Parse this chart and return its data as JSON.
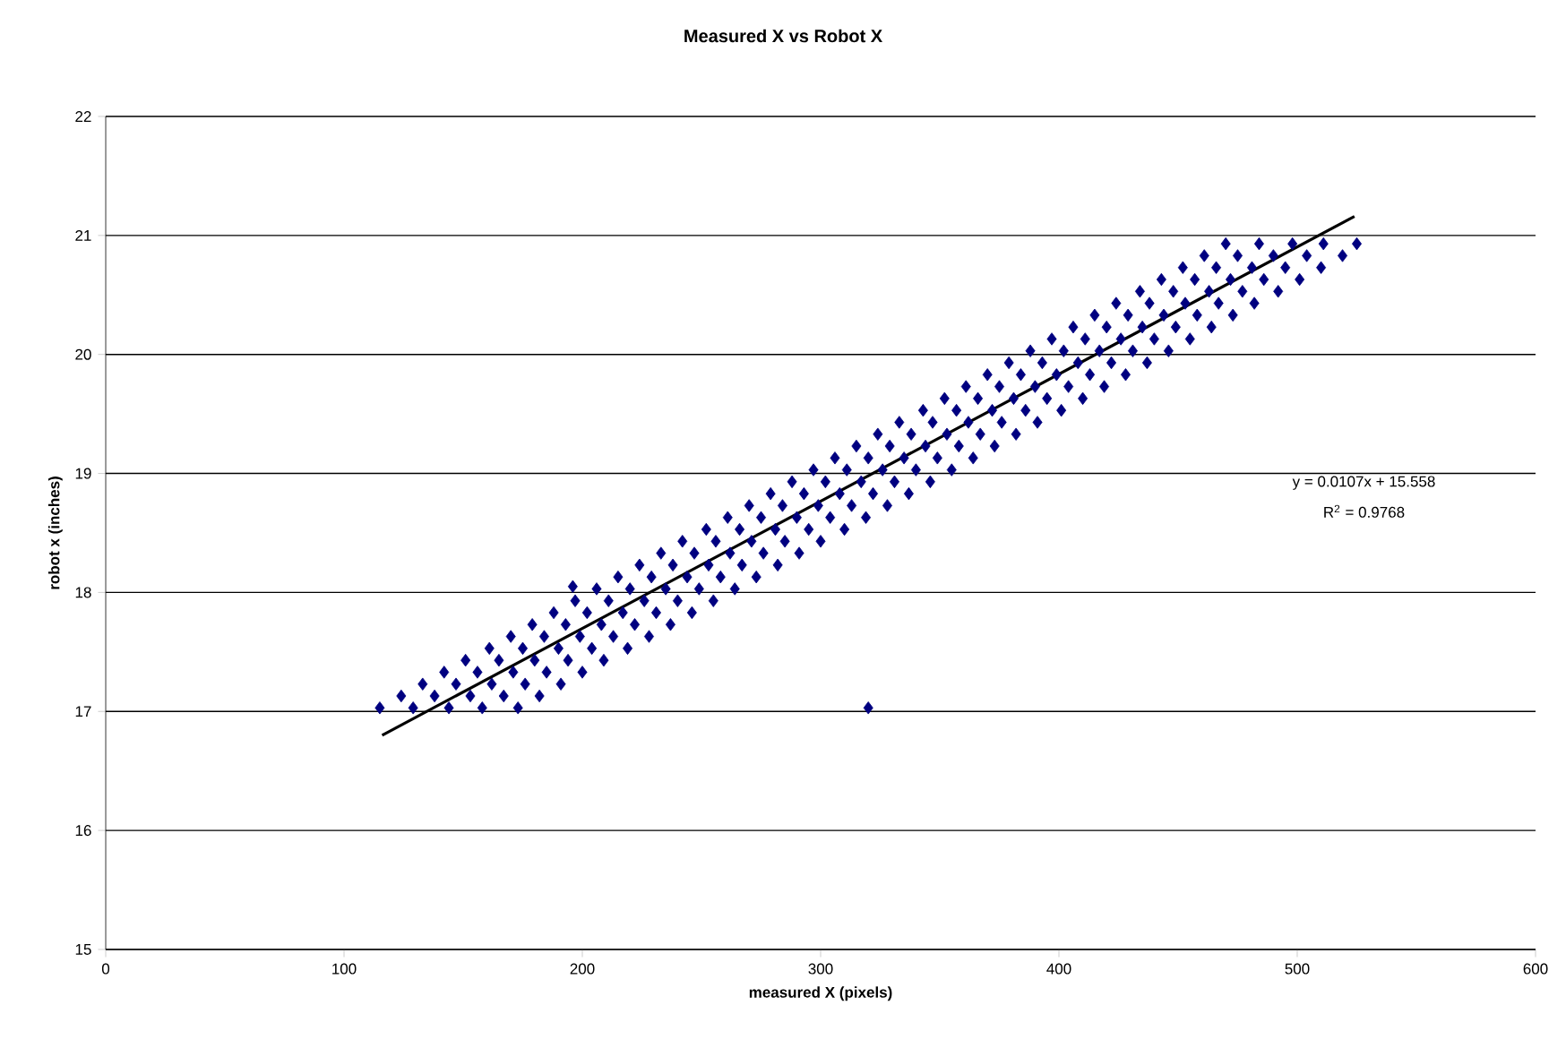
{
  "chart_data": {
    "type": "scatter",
    "title": "Measured X vs Robot X",
    "xlabel": "measured X (pixels)",
    "ylabel": "robot x (inches)",
    "xlim": [
      0,
      600
    ],
    "xticks": [
      0,
      100,
      200,
      300,
      400,
      500,
      600
    ],
    "ylim": [
      15,
      22
    ],
    "yticks": [
      15,
      16,
      17,
      18,
      19,
      20,
      21,
      22
    ],
    "grid": "y",
    "annotations": [
      "y = 0.0107x + 15.558",
      "R$^{2}$ = 0.9768"
    ],
    "series": [
      {
        "color": "#000080",
        "marker": "diamond",
        "x": [
          115,
          129,
          144,
          158,
          173,
          124,
          138,
          153,
          167,
          182,
          133,
          147,
          162,
          176,
          191,
          142,
          156,
          171,
          185,
          200,
          151,
          165,
          180,
          194,
          209,
          161,
          175,
          190,
          204,
          219,
          170,
          184,
          199,
          213,
          228,
          179,
          193,
          208,
          222,
          237,
          188,
          202,
          217,
          231,
          246,
          197,
          211,
          226,
          240,
          255,
          206,
          220,
          235,
          249,
          264,
          215,
          229,
          244,
          258,
          273,
          224,
          238,
          253,
          267,
          282,
          233,
          247,
          262,
          276,
          291,
          242,
          256,
          271,
          285,
          300,
          252,
          266,
          281,
          295,
          310,
          261,
          275,
          290,
          304,
          319,
          270,
          284,
          299,
          313,
          328,
          279,
          293,
          308,
          322,
          337,
          288,
          302,
          317,
          331,
          346,
          297,
          311,
          326,
          340,
          355,
          306,
          320,
          335,
          349,
          364,
          315,
          329,
          344,
          358,
          373,
          324,
          338,
          353,
          367,
          382,
          333,
          347,
          362,
          376,
          391,
          343,
          357,
          372,
          386,
          401,
          352,
          366,
          381,
          395,
          410,
          361,
          375,
          390,
          404,
          419,
          370,
          384,
          399,
          413,
          428,
          379,
          393,
          408,
          422,
          437,
          388,
          402,
          417,
          431,
          446,
          397,
          411,
          426,
          440,
          455,
          406,
          420,
          435,
          449,
          464,
          415,
          429,
          444,
          458,
          473,
          424,
          438,
          453,
          467,
          482,
          434,
          448,
          463,
          477,
          492,
          443,
          457,
          472,
          486,
          501,
          452,
          466,
          481,
          495,
          510,
          461,
          475,
          490,
          504,
          519,
          470,
          484,
          498,
          511,
          525,
          196,
          320
        ],
        "values": [
          17.03,
          17.03,
          17.03,
          17.03,
          17.03,
          17.13,
          17.13,
          17.13,
          17.13,
          17.13,
          17.23,
          17.23,
          17.23,
          17.23,
          17.23,
          17.33,
          17.33,
          17.33,
          17.33,
          17.33,
          17.43,
          17.43,
          17.43,
          17.43,
          17.43,
          17.53,
          17.53,
          17.53,
          17.53,
          17.53,
          17.63,
          17.63,
          17.63,
          17.63,
          17.63,
          17.73,
          17.73,
          17.73,
          17.73,
          17.73,
          17.83,
          17.83,
          17.83,
          17.83,
          17.83,
          17.93,
          17.93,
          17.93,
          17.93,
          17.93,
          18.03,
          18.03,
          18.03,
          18.03,
          18.03,
          18.13,
          18.13,
          18.13,
          18.13,
          18.13,
          18.23,
          18.23,
          18.23,
          18.23,
          18.23,
          18.33,
          18.33,
          18.33,
          18.33,
          18.33,
          18.43,
          18.43,
          18.43,
          18.43,
          18.43,
          18.53,
          18.53,
          18.53,
          18.53,
          18.53,
          18.63,
          18.63,
          18.63,
          18.63,
          18.63,
          18.73,
          18.73,
          18.73,
          18.73,
          18.73,
          18.83,
          18.83,
          18.83,
          18.83,
          18.83,
          18.93,
          18.93,
          18.93,
          18.93,
          18.93,
          19.03,
          19.03,
          19.03,
          19.03,
          19.03,
          19.13,
          19.13,
          19.13,
          19.13,
          19.13,
          19.23,
          19.23,
          19.23,
          19.23,
          19.23,
          19.33,
          19.33,
          19.33,
          19.33,
          19.33,
          19.43,
          19.43,
          19.43,
          19.43,
          19.43,
          19.53,
          19.53,
          19.53,
          19.53,
          19.53,
          19.63,
          19.63,
          19.63,
          19.63,
          19.63,
          19.73,
          19.73,
          19.73,
          19.73,
          19.73,
          19.83,
          19.83,
          19.83,
          19.83,
          19.83,
          19.93,
          19.93,
          19.93,
          19.93,
          19.93,
          20.03,
          20.03,
          20.03,
          20.03,
          20.03,
          20.13,
          20.13,
          20.13,
          20.13,
          20.13,
          20.23,
          20.23,
          20.23,
          20.23,
          20.23,
          20.33,
          20.33,
          20.33,
          20.33,
          20.33,
          20.43,
          20.43,
          20.43,
          20.43,
          20.43,
          20.53,
          20.53,
          20.53,
          20.53,
          20.53,
          20.63,
          20.63,
          20.63,
          20.63,
          20.63,
          20.73,
          20.73,
          20.73,
          20.73,
          20.73,
          20.83,
          20.83,
          20.83,
          20.83,
          20.83,
          20.93,
          20.93,
          20.93,
          20.93,
          20.93,
          18.05,
          17.03
        ]
      },
      {
        "type": "line",
        "color": "#000000",
        "x": [
          116,
          524
        ],
        "values": [
          16.8,
          21.16
        ]
      }
    ]
  }
}
